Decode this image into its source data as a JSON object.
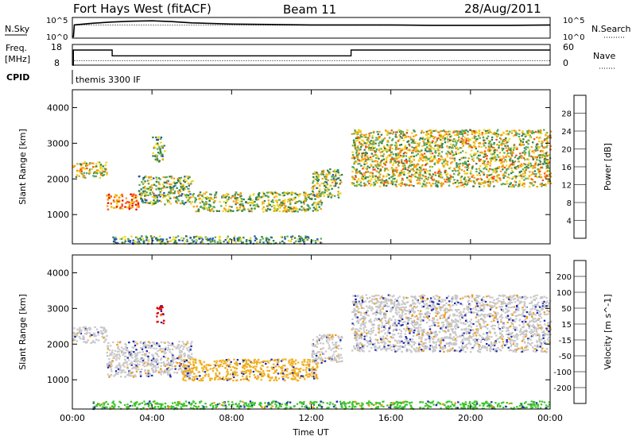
{
  "header": {
    "title": "Fort Hays West (fitACF)",
    "beam": "Beam 11",
    "date": "28/Aug/2011"
  },
  "side_labels": {
    "nsky": "N.Sky",
    "nsearch": "N.Search",
    "freq_line1": "Freq.",
    "freq_line2": "[MHz]",
    "nave": "Nave",
    "cpid": "CPID",
    "cpid_value": "themis 3300 IF"
  },
  "noise_ticks": {
    "top": "10^5",
    "bottom": "10^0",
    "right_top": "10^5",
    "right_bottom": "10^0"
  },
  "freq_ticks": {
    "left": [
      "18",
      "8"
    ],
    "right": [
      "60",
      "0"
    ]
  },
  "chart_data": [
    {
      "type": "line",
      "title": "",
      "panel": "noise",
      "series": [
        {
          "name": "N.Sky",
          "x_hours": [
            0.05,
            0.1,
            1,
            2,
            3,
            4,
            5,
            6,
            8,
            10,
            12,
            14,
            16,
            18,
            20,
            22,
            24
          ],
          "log10_value": [
            0.2,
            3.2,
            3.6,
            3.9,
            4.1,
            4.2,
            4.0,
            3.7,
            3.4,
            3.3,
            3.2,
            3.2,
            3.2,
            3.1,
            3.1,
            3.1,
            3.2
          ]
        },
        {
          "name": "N.Search",
          "style": "dotted",
          "x_hours": [
            0.1,
            12,
            24
          ],
          "log10_value": [
            3.2,
            3.1,
            3.1
          ]
        }
      ],
      "ylim_log10": [
        0,
        5
      ]
    },
    {
      "type": "line",
      "panel": "frequency",
      "series": [
        {
          "name": "Freq.",
          "x_hours": [
            0.0,
            0.05,
            0.05,
            2.0,
            2.0,
            14.0,
            14.0,
            24.0
          ],
          "values": [
            8,
            8,
            15.3,
            15.3,
            12.5,
            12.5,
            15.3,
            15.3
          ]
        },
        {
          "name": "Nave",
          "style": "dotted",
          "x_hours": [
            0.1,
            24
          ],
          "values": [
            13,
            13
          ]
        }
      ],
      "ylim_freq": [
        8,
        18
      ],
      "ylim_nave": [
        0,
        60
      ]
    },
    {
      "type": "heatmap",
      "panel": "power",
      "xlabel": "",
      "ylabel": "Slant Range [km]",
      "xlim_hours": [
        0,
        24
      ],
      "ylim_km": [
        180,
        4500
      ],
      "y_ticks": [
        "1000",
        "2000",
        "3000",
        "4000"
      ],
      "colorbar_label": "Power [dB]",
      "colorbar_ticks": [
        "4",
        "8",
        "12",
        "16",
        "20",
        "24",
        "28"
      ],
      "colorbar_colors": [
        "#1414ff",
        "#1f52b8",
        "#2f7f4a",
        "#56a85a",
        "#f0d21c",
        "#f39a10",
        "#ff4a0a",
        "#e60000"
      ],
      "echo_regions": [
        {
          "t0": 0.0,
          "t1": 1.7,
          "r0": 2050,
          "r1": 2500,
          "level": 0.55
        },
        {
          "t0": 1.7,
          "t1": 3.3,
          "r0": 1150,
          "r1": 1600,
          "level": 0.8
        },
        {
          "t0": 3.3,
          "t1": 6.0,
          "r0": 1300,
          "r1": 2100,
          "level": 0.45
        },
        {
          "t0": 4.0,
          "t1": 4.6,
          "r0": 2500,
          "r1": 3200,
          "level": 0.4
        },
        {
          "t0": 6.0,
          "t1": 12.5,
          "r0": 1100,
          "r1": 1650,
          "level": 0.5
        },
        {
          "t0": 12.0,
          "t1": 13.5,
          "r0": 1500,
          "r1": 2300,
          "level": 0.45
        },
        {
          "t0": 14.0,
          "t1": 24.0,
          "r0": 1800,
          "r1": 3400,
          "level": 0.55
        },
        {
          "t0": 2.0,
          "t1": 12.5,
          "r0": 200,
          "r1": 420,
          "level": 0.35
        }
      ]
    },
    {
      "type": "heatmap",
      "panel": "velocity",
      "xlabel": "Time UT",
      "ylabel": "Slant Range [km]",
      "xlim_hours": [
        0,
        24
      ],
      "ylim_km": [
        180,
        4500
      ],
      "x_ticks": [
        "00:00",
        "04:00",
        "08:00",
        "12:00",
        "16:00",
        "20:00",
        "00:00"
      ],
      "y_ticks": [
        "1000",
        "2000",
        "3000",
        "4000"
      ],
      "colorbar_label": "Velocity [m s^-1]",
      "colorbar_ticks": [
        "200",
        "100",
        "50",
        "15",
        "-15",
        "-50",
        "-100",
        "-200"
      ],
      "colorbar_colors": [
        "#1e2ab0",
        "#2e5f9c",
        "#2f7f3a",
        "#3ec42e",
        "#c8c8c8",
        "#f0c020",
        "#f39a10",
        "#ff5a0a",
        "#e60000"
      ],
      "echo_regions": [
        {
          "t0": 0.0,
          "t1": 1.7,
          "r0": 2050,
          "r1": 2500,
          "vel": "grey"
        },
        {
          "t0": 1.7,
          "t1": 6.0,
          "r0": 1100,
          "r1": 2100,
          "vel": "grey"
        },
        {
          "t0": 4.2,
          "t1": 4.6,
          "r0": 2600,
          "r1": 3100,
          "vel": "red"
        },
        {
          "t0": 5.5,
          "t1": 12.3,
          "r0": 1000,
          "r1": 1600,
          "vel": "yellow"
        },
        {
          "t0": 12.0,
          "t1": 13.5,
          "r0": 1500,
          "r1": 2300,
          "vel": "grey"
        },
        {
          "t0": 14.0,
          "t1": 24.0,
          "r0": 1800,
          "r1": 3400,
          "vel": "grey"
        },
        {
          "t0": 1.0,
          "t1": 24.0,
          "r0": 200,
          "r1": 420,
          "vel": "green"
        }
      ]
    }
  ]
}
